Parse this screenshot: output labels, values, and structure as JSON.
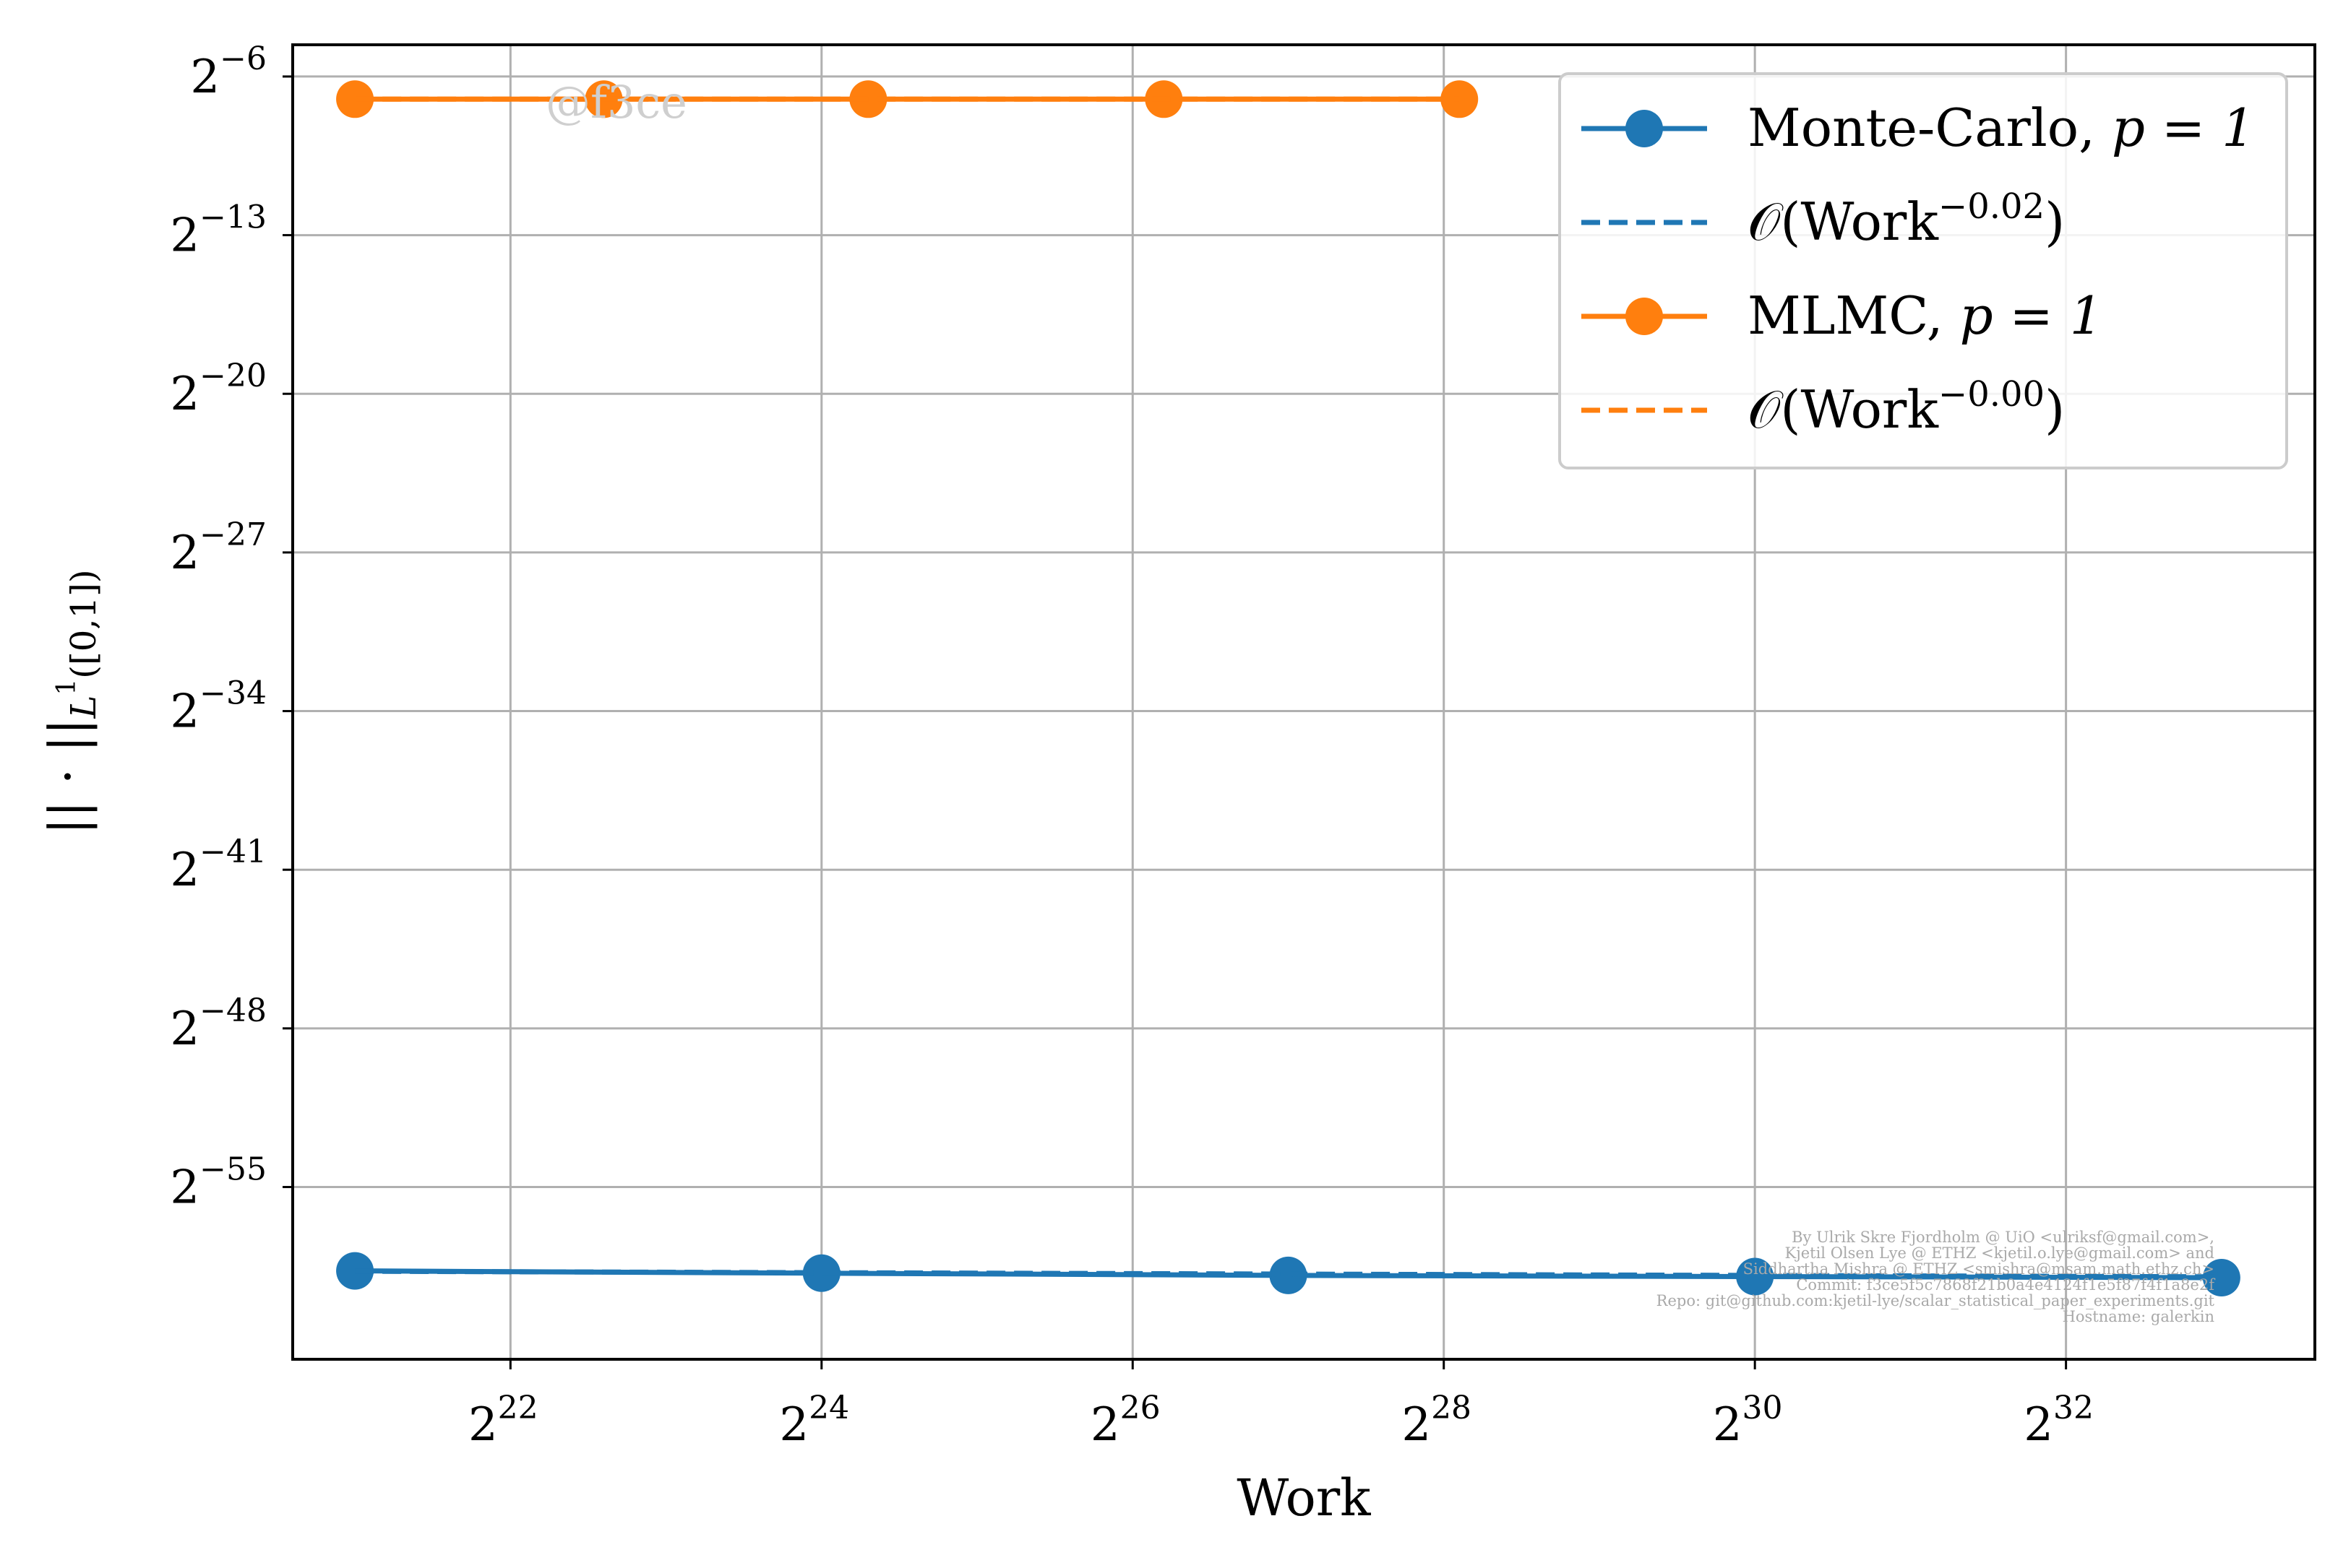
{
  "chart_data": {
    "type": "line",
    "xlabel": "Work",
    "ylabel": "||·||L¹([0,1])",
    "ylabel_main": "|| · ||",
    "ylabel_sub": "L",
    "ylabel_sup": "1",
    "ylabel_sub_tail": "([0,1])",
    "x_scale": "log2",
    "y_scale": "log2",
    "xlim_log2": [
      20.6,
      33.6
    ],
    "ylim_log2": [
      -62.6,
      -4.6
    ],
    "x_ticks": [
      {
        "base": "2",
        "exp": "22",
        "log2": 22
      },
      {
        "base": "2",
        "exp": "24",
        "log2": 24
      },
      {
        "base": "2",
        "exp": "26",
        "log2": 26
      },
      {
        "base": "2",
        "exp": "28",
        "log2": 28
      },
      {
        "base": "2",
        "exp": "30",
        "log2": 30
      },
      {
        "base": "2",
        "exp": "32",
        "log2": 32
      }
    ],
    "y_ticks": [
      {
        "base": "2",
        "exp": "−6",
        "log2": -6
      },
      {
        "base": "2",
        "exp": "−13",
        "log2": -13
      },
      {
        "base": "2",
        "exp": "−20",
        "log2": -20
      },
      {
        "base": "2",
        "exp": "−27",
        "log2": -27
      },
      {
        "base": "2",
        "exp": "−34",
        "log2": -34
      },
      {
        "base": "2",
        "exp": "−41",
        "log2": -41
      },
      {
        "base": "2",
        "exp": "−48",
        "log2": -48
      },
      {
        "base": "2",
        "exp": "−55",
        "log2": -55
      }
    ],
    "grid": true,
    "legend_position": "top-right",
    "series": [
      {
        "name": "Monte-Carlo, p = 1",
        "legend_label": "Monte-Carlo, ",
        "legend_math": "p = 1",
        "color": "#1f77b4",
        "style": "solid-marker",
        "x_log2": [
          21,
          24,
          27,
          30,
          33
        ],
        "y_log2": [
          -58.7,
          -58.8,
          -58.9,
          -58.95,
          -59.0
        ]
      },
      {
        "name": "O(Work^-0.02)",
        "legend_label": "𝒪(Work",
        "legend_sup": "−0.02",
        "legend_tail": ")",
        "color": "#1f77b4",
        "style": "dashed",
        "x_log2": [
          21,
          33
        ],
        "y_log2": [
          -58.72,
          -58.96
        ]
      },
      {
        "name": "MLMC, p = 1",
        "legend_label": "MLMC, ",
        "legend_math": "p = 1",
        "color": "#ff7f0e",
        "style": "solid-marker",
        "x_log2": [
          21,
          22.6,
          24.3,
          26.2,
          28.1
        ],
        "y_log2": [
          -7.0,
          -7.0,
          -7.0,
          -7.0,
          -7.0
        ]
      },
      {
        "name": "O(Work^-0.00)",
        "legend_label": "𝒪(Work",
        "legend_sup": "−0.00",
        "legend_tail": ")",
        "color": "#ff7f0e",
        "style": "dashed",
        "x_log2": [
          21,
          28.1
        ],
        "y_log2": [
          -7.0,
          -7.0
        ]
      }
    ],
    "watermark": "@f3ce",
    "credits": [
      "By Ulrik Skre Fjordholm @ UiO <ulriksf@gmail.com>,",
      "Kjetil Olsen Lye @ ETHZ <kjetil.o.lye@gmail.com> and",
      "Siddhartha Mishra @ ETHZ <smishra@msam.math.ethz.ch>",
      "Commit: f3ce5f5c7868f21b0a4e4124f1e5f87f4f1a8e2f",
      "Repo: git@github.com:kjetil-lye/scalar_statistical_paper_experiments.git",
      "Hostname: galerkin"
    ]
  }
}
